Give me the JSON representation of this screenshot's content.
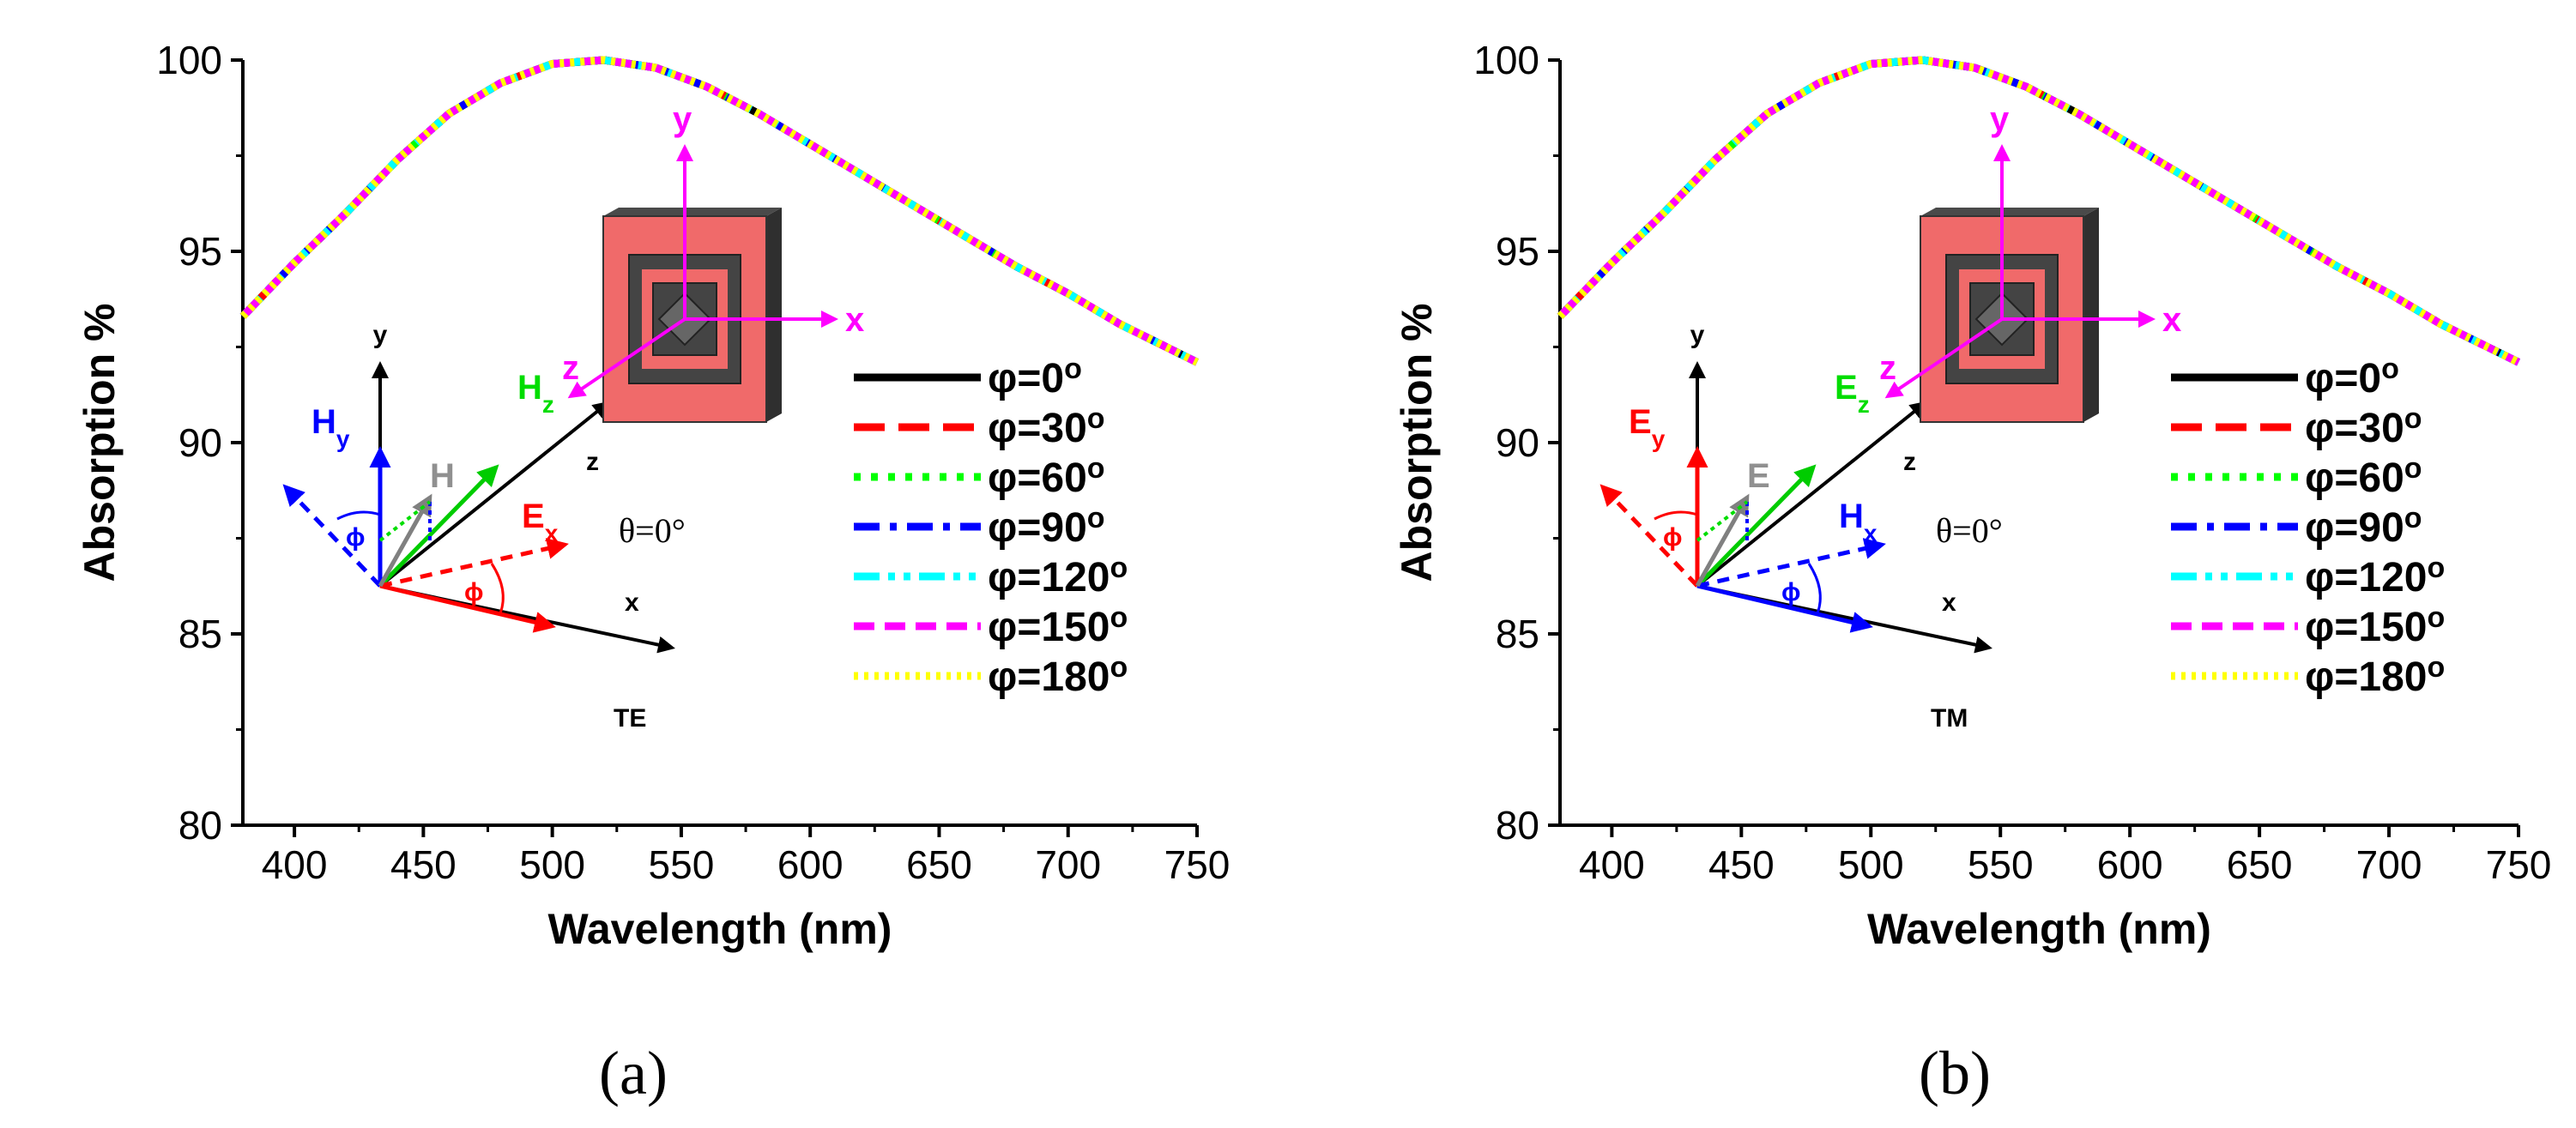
{
  "chart_data": [
    {
      "type": "line",
      "panel_label": "(a)",
      "mode_label": "TE",
      "theta_label": "θ=0°",
      "xlabel": "Wavelength (nm)",
      "ylabel": "Absorption %",
      "xlim": [
        380,
        750
      ],
      "ylim": [
        80,
        100
      ],
      "xticks": [
        400,
        450,
        500,
        550,
        600,
        650,
        700,
        750
      ],
      "yticks": [
        80,
        85,
        90,
        95,
        100
      ],
      "x": [
        380,
        400,
        420,
        440,
        460,
        480,
        500,
        520,
        540,
        560,
        580,
        600,
        620,
        640,
        660,
        680,
        700,
        720,
        750
      ],
      "series": [
        {
          "name": "φ=0°",
          "color": "#000000",
          "dash": "solid",
          "values": [
            93.3,
            94.7,
            96.0,
            97.4,
            98.6,
            99.4,
            99.9,
            100.0,
            99.8,
            99.3,
            98.6,
            97.8,
            97.0,
            96.2,
            95.4,
            94.6,
            93.9,
            93.1,
            92.1
          ]
        },
        {
          "name": "φ=30°",
          "color": "#ff0000",
          "dash": "dash",
          "values": [
            93.3,
            94.7,
            96.0,
            97.4,
            98.6,
            99.4,
            99.9,
            100.0,
            99.8,
            99.3,
            98.6,
            97.8,
            97.0,
            96.2,
            95.4,
            94.6,
            93.9,
            93.1,
            92.1
          ]
        },
        {
          "name": "φ=60°",
          "color": "#00ff00",
          "dash": "dot",
          "values": [
            93.3,
            94.7,
            96.0,
            97.4,
            98.6,
            99.4,
            99.9,
            100.0,
            99.8,
            99.3,
            98.6,
            97.8,
            97.0,
            96.2,
            95.4,
            94.6,
            93.9,
            93.1,
            92.1
          ]
        },
        {
          "name": "φ=90°",
          "color": "#0000ff",
          "dash": "dashdot",
          "values": [
            93.3,
            94.7,
            96.0,
            97.4,
            98.6,
            99.4,
            99.9,
            100.0,
            99.8,
            99.3,
            98.6,
            97.8,
            97.0,
            96.2,
            95.4,
            94.6,
            93.9,
            93.1,
            92.1
          ]
        },
        {
          "name": "φ=120°",
          "color": "#00ffff",
          "dash": "dashdotdot",
          "values": [
            93.3,
            94.7,
            96.0,
            97.4,
            98.6,
            99.4,
            99.9,
            100.0,
            99.8,
            99.3,
            98.6,
            97.8,
            97.0,
            96.2,
            95.4,
            94.6,
            93.9,
            93.1,
            92.1
          ]
        },
        {
          "name": "φ=150°",
          "color": "#ff00ff",
          "dash": "shortdash",
          "values": [
            93.3,
            94.7,
            96.0,
            97.4,
            98.6,
            99.4,
            99.9,
            100.0,
            99.8,
            99.3,
            98.6,
            97.8,
            97.0,
            96.2,
            95.4,
            94.6,
            93.9,
            93.1,
            92.1
          ]
        },
        {
          "name": "φ=180°",
          "color": "#ffff00",
          "dash": "shortdot",
          "values": [
            93.3,
            94.7,
            96.0,
            97.4,
            98.6,
            99.4,
            99.9,
            100.0,
            99.8,
            99.3,
            98.6,
            97.8,
            97.0,
            96.2,
            95.4,
            94.6,
            93.9,
            93.1,
            92.1
          ]
        }
      ],
      "inset": {
        "axes_labels": {
          "x": "x",
          "y": "y",
          "z": "z"
        },
        "field_labels": {
          "horizontal": "Ex",
          "vertical": "Hy",
          "propagation": "Hz",
          "total": "H"
        },
        "angle_label": "ϕ",
        "unit_cell_axes": {
          "x": "x",
          "y": "y",
          "z": "z"
        }
      }
    },
    {
      "type": "line",
      "panel_label": "(b)",
      "mode_label": "TM",
      "theta_label": "θ=0°",
      "xlabel": "Wavelength (nm)",
      "ylabel": "Absorption %",
      "xlim": [
        380,
        750
      ],
      "ylim": [
        80,
        100
      ],
      "xticks": [
        400,
        450,
        500,
        550,
        600,
        650,
        700,
        750
      ],
      "yticks": [
        80,
        85,
        90,
        95,
        100
      ],
      "x": [
        380,
        400,
        420,
        440,
        460,
        480,
        500,
        520,
        540,
        560,
        580,
        600,
        620,
        640,
        660,
        680,
        700,
        720,
        750
      ],
      "series": [
        {
          "name": "φ=0°",
          "color": "#000000",
          "dash": "solid",
          "values": [
            93.3,
            94.7,
            96.0,
            97.4,
            98.6,
            99.4,
            99.9,
            100.0,
            99.8,
            99.3,
            98.6,
            97.8,
            97.0,
            96.2,
            95.4,
            94.6,
            93.9,
            93.1,
            92.1
          ]
        },
        {
          "name": "φ=30°",
          "color": "#ff0000",
          "dash": "dash",
          "values": [
            93.3,
            94.7,
            96.0,
            97.4,
            98.6,
            99.4,
            99.9,
            100.0,
            99.8,
            99.3,
            98.6,
            97.8,
            97.0,
            96.2,
            95.4,
            94.6,
            93.9,
            93.1,
            92.1
          ]
        },
        {
          "name": "φ=60°",
          "color": "#00ff00",
          "dash": "dot",
          "values": [
            93.3,
            94.7,
            96.0,
            97.4,
            98.6,
            99.4,
            99.9,
            100.0,
            99.8,
            99.3,
            98.6,
            97.8,
            97.0,
            96.2,
            95.4,
            94.6,
            93.9,
            93.1,
            92.1
          ]
        },
        {
          "name": "φ=90°",
          "color": "#0000ff",
          "dash": "dashdot",
          "values": [
            93.3,
            94.7,
            96.0,
            97.4,
            98.6,
            99.4,
            99.9,
            100.0,
            99.8,
            99.3,
            98.6,
            97.8,
            97.0,
            96.2,
            95.4,
            94.6,
            93.9,
            93.1,
            92.1
          ]
        },
        {
          "name": "φ=120°",
          "color": "#00ffff",
          "dash": "dashdotdot",
          "values": [
            93.3,
            94.7,
            96.0,
            97.4,
            98.6,
            99.4,
            99.9,
            100.0,
            99.8,
            99.3,
            98.6,
            97.8,
            97.0,
            96.2,
            95.4,
            94.6,
            93.9,
            93.1,
            92.1
          ]
        },
        {
          "name": "φ=150°",
          "color": "#ff00ff",
          "dash": "shortdash",
          "values": [
            93.3,
            94.7,
            96.0,
            97.4,
            98.6,
            99.4,
            99.9,
            100.0,
            99.8,
            99.3,
            98.6,
            97.8,
            97.0,
            96.2,
            95.4,
            94.6,
            93.9,
            93.1,
            92.1
          ]
        },
        {
          "name": "φ=180°",
          "color": "#ffff00",
          "dash": "shortdot",
          "values": [
            93.3,
            94.7,
            96.0,
            97.4,
            98.6,
            99.4,
            99.9,
            100.0,
            99.8,
            99.3,
            98.6,
            97.8,
            97.0,
            96.2,
            95.4,
            94.6,
            93.9,
            93.1,
            92.1
          ]
        }
      ],
      "inset": {
        "axes_labels": {
          "x": "x",
          "y": "y",
          "z": "z"
        },
        "field_labels": {
          "horizontal": "Hx",
          "vertical": "Ey",
          "propagation": "Ez",
          "total": "E"
        },
        "angle_label": "ϕ",
        "unit_cell_axes": {
          "x": "x",
          "y": "y",
          "z": "z"
        }
      }
    }
  ]
}
